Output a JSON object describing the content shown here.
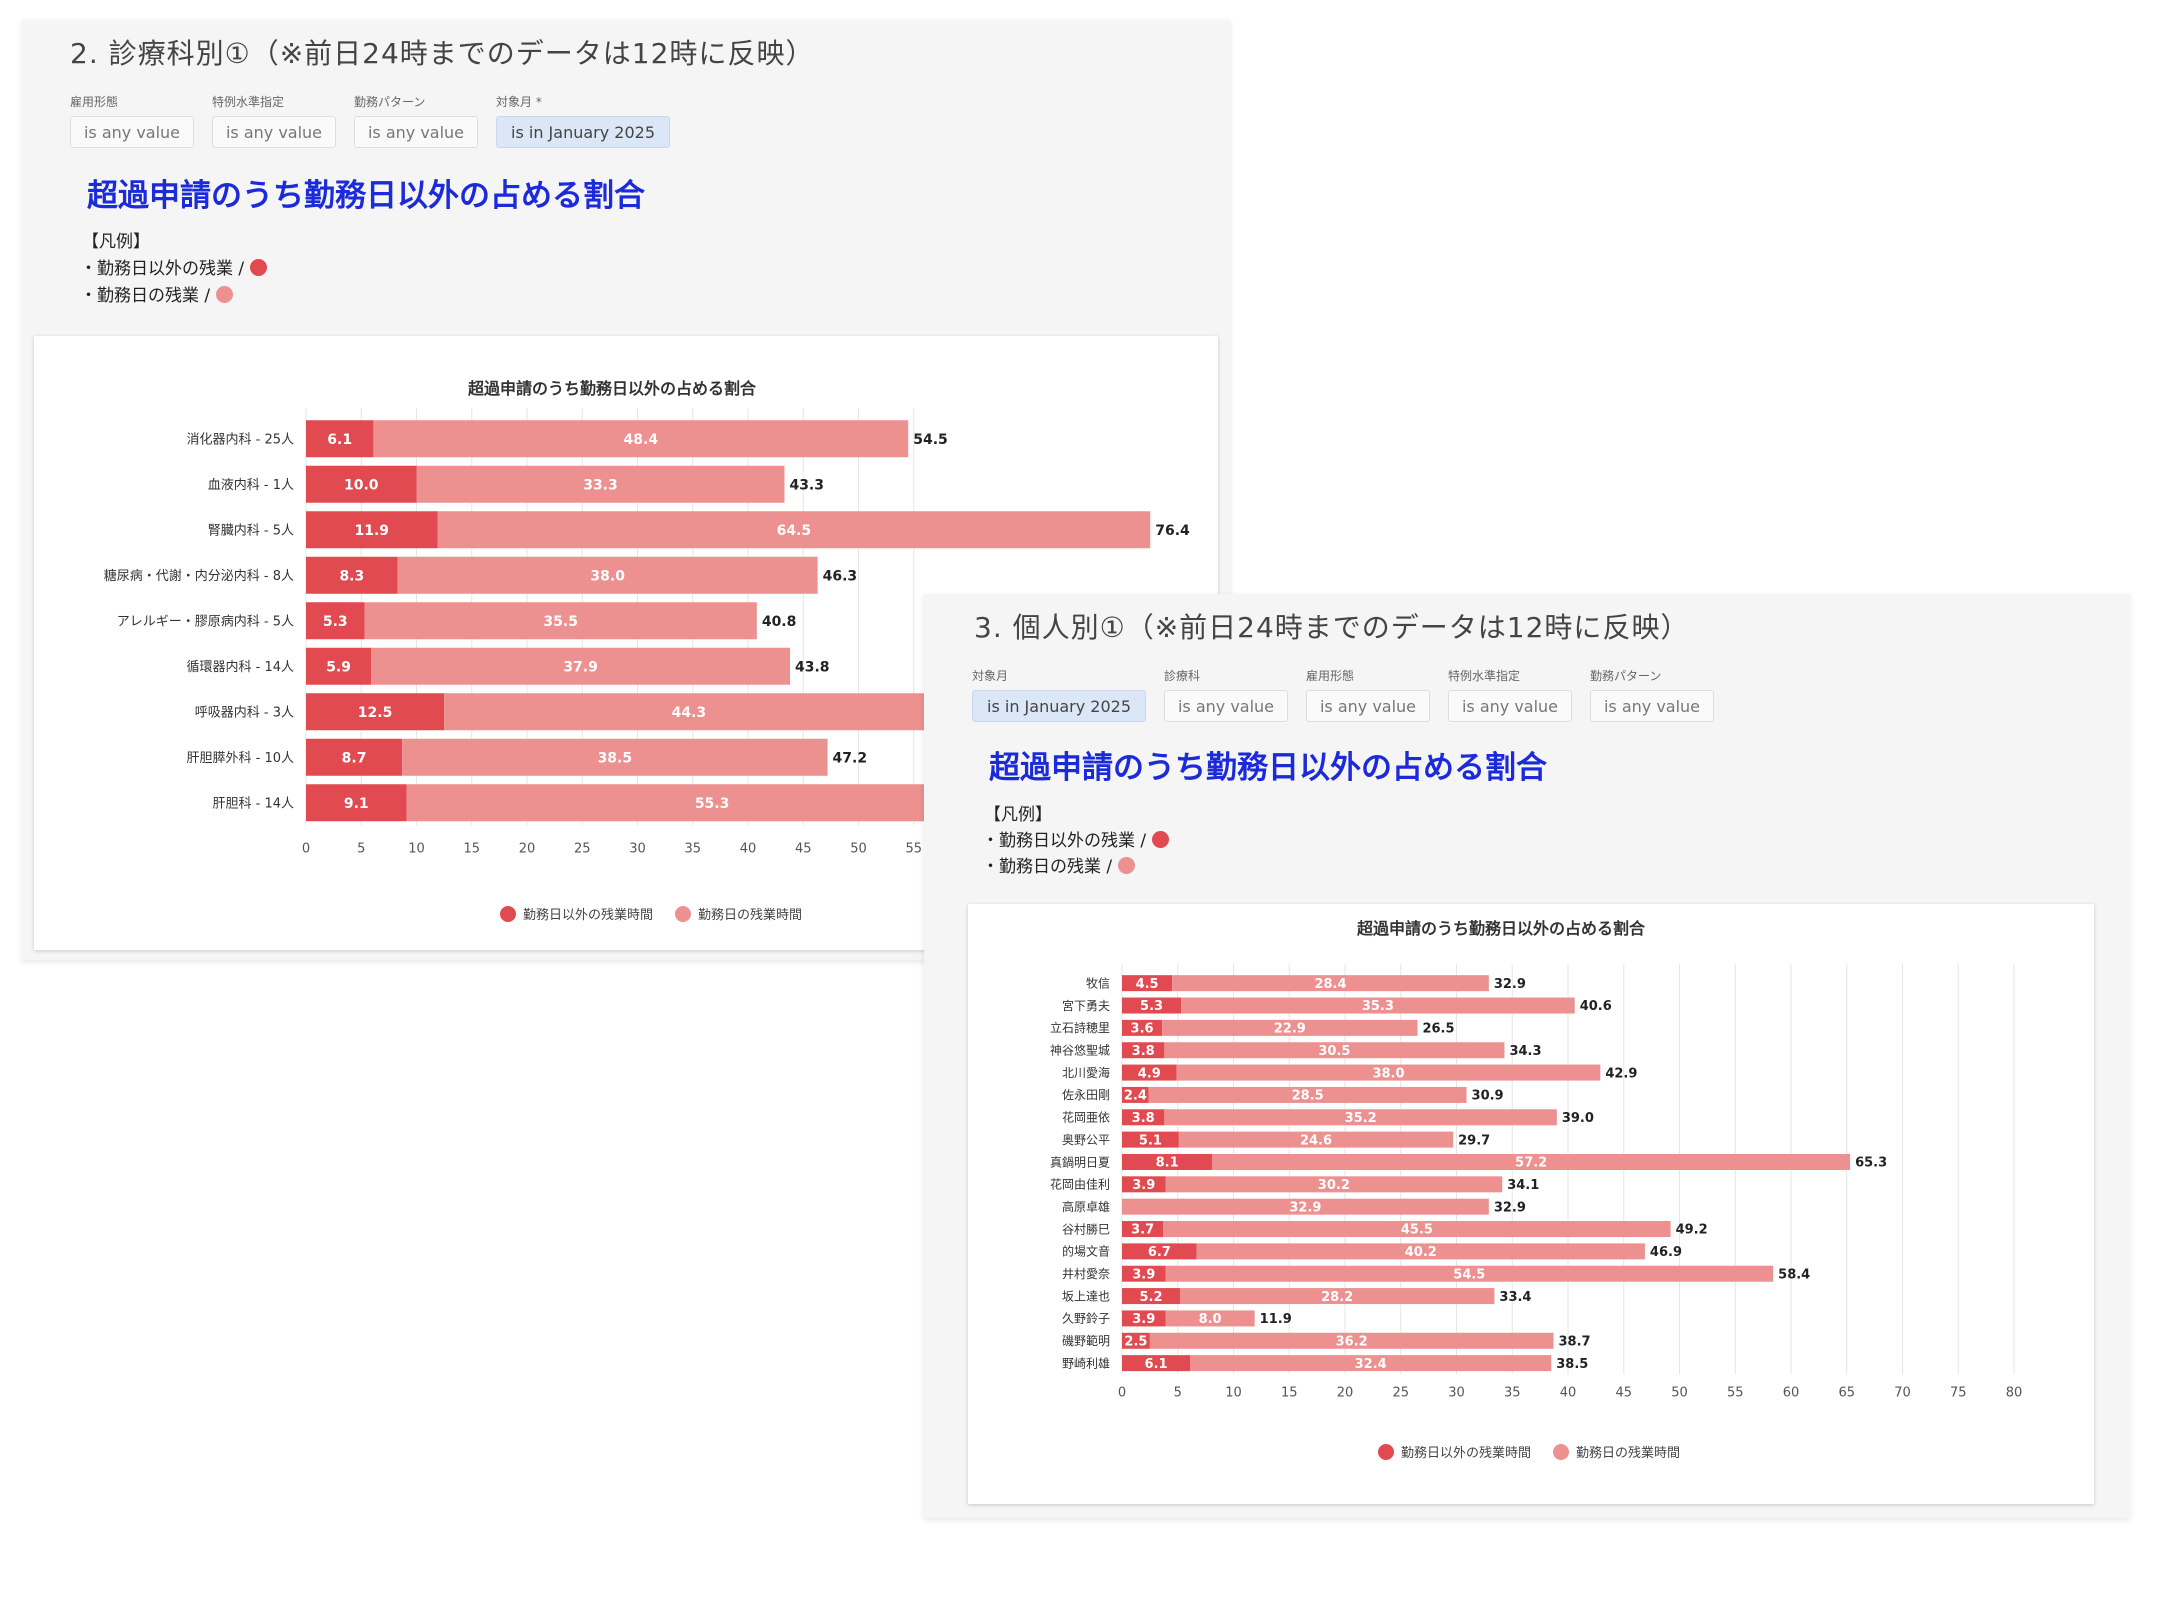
{
  "colors": {
    "dark": "#e04a50",
    "light": "#ec9090",
    "title_blue": "#1c2bd9",
    "chip_active": "#dbe7f6"
  },
  "dept": {
    "section_title": "2. 診療科別①（※前日24時までのデータは12時に反映）",
    "filters": [
      {
        "label": "雇用形態",
        "value": "is any value",
        "active": false
      },
      {
        "label": "特例水準指定",
        "value": "is any value",
        "active": false
      },
      {
        "label": "勤務パターン",
        "value": "is any value",
        "active": false
      },
      {
        "label": "対象月 *",
        "value": "is in January 2025",
        "active": true
      }
    ],
    "big_title": "超過申請のうち勤務日以外の占める割合",
    "legend_heading": "【凡例】",
    "legend_line1": "・勤務日以外の残業 /",
    "legend_line2": "・勤務日の残業 /"
  },
  "person": {
    "section_title": "3. 個人別①（※前日24時までのデータは12時に反映）",
    "filters": [
      {
        "label": "対象月",
        "value": "is in January 2025",
        "active": true
      },
      {
        "label": "診療科",
        "value": "is any value",
        "active": false
      },
      {
        "label": "雇用形態",
        "value": "is any value",
        "active": false
      },
      {
        "label": "特例水準指定",
        "value": "is any value",
        "active": false
      },
      {
        "label": "勤務パターン",
        "value": "is any value",
        "active": false
      }
    ],
    "big_title": "超過申請のうち勤務日以外の占める割合",
    "legend_heading": "【凡例】",
    "legend_line1": "・勤務日以外の残業 /",
    "legend_line2": "・勤務日の残業 /"
  },
  "chart_data": [
    {
      "type": "bar",
      "orientation": "horizontal",
      "stacked": true,
      "title": "超過申請のうち勤務日以外の占める割合",
      "categories": [
        "消化器内科 - 25人",
        "血液内科 - 1人",
        "腎臓内科 - 5人",
        "糖尿病・代謝・内分泌内科 - 8人",
        "アレルギー・膠原病内科 - 5人",
        "循環器内科 - 14人",
        "呼吸器内科 - 3人",
        "肝胆膵外科 - 10人",
        "肝胆科 - 14人"
      ],
      "series": [
        {
          "name": "勤務日以外の残業時間",
          "color": "#e04a50",
          "values": [
            6.1,
            10.0,
            11.9,
            8.3,
            5.3,
            5.9,
            12.5,
            8.7,
            9.1
          ]
        },
        {
          "name": "勤務日の残業時間",
          "color": "#ec9090",
          "values": [
            48.4,
            33.3,
            64.5,
            38.0,
            35.5,
            37.9,
            44.3,
            38.5,
            55.3
          ]
        }
      ],
      "totals": [
        54.5,
        43.3,
        76.4,
        46.3,
        40.8,
        43.8,
        null,
        47.2,
        null
      ],
      "xticks": [
        0,
        5,
        10,
        15,
        20,
        25,
        30,
        35,
        40,
        45,
        50,
        55
      ],
      "grid": true,
      "legend_position": "bottom"
    },
    {
      "type": "bar",
      "orientation": "horizontal",
      "stacked": true,
      "title": "超過申請のうち勤務日以外の占める割合",
      "categories": [
        "牧信",
        "宮下勇夫",
        "立石詩穂里",
        "神谷悠聖城",
        "北川愛海",
        "佐永田剛",
        "花岡亜依",
        "奥野公平",
        "真鍋明日夏",
        "花岡由佳利",
        "高原卓雄",
        "谷村勝巳",
        "的場文音",
        "井村愛奈",
        "坂上達也",
        "久野鈴子",
        "磯野範明",
        "野崎利雄"
      ],
      "series": [
        {
          "name": "勤務日以外の残業時間",
          "color": "#e04a50",
          "values": [
            4.5,
            5.3,
            3.6,
            3.8,
            4.9,
            2.4,
            3.8,
            5.1,
            8.1,
            3.9,
            null,
            3.7,
            6.7,
            3.9,
            5.2,
            3.9,
            2.5,
            6.1
          ]
        },
        {
          "name": "勤務日の残業時間",
          "color": "#ec9090",
          "values": [
            28.4,
            35.3,
            22.9,
            30.5,
            38.0,
            28.5,
            35.2,
            24.6,
            57.2,
            30.2,
            32.9,
            45.5,
            40.2,
            54.5,
            28.2,
            8.0,
            36.2,
            32.4
          ]
        }
      ],
      "totals": [
        32.9,
        40.6,
        26.5,
        34.3,
        42.9,
        30.9,
        39.0,
        29.7,
        65.3,
        34.1,
        32.9,
        49.2,
        46.9,
        58.4,
        33.4,
        11.9,
        38.7,
        38.5
      ],
      "xticks": [
        0,
        5,
        10,
        15,
        20,
        25,
        30,
        35,
        40,
        45,
        50,
        55,
        60,
        65,
        70,
        75,
        80
      ],
      "grid": true,
      "legend_position": "bottom"
    }
  ]
}
